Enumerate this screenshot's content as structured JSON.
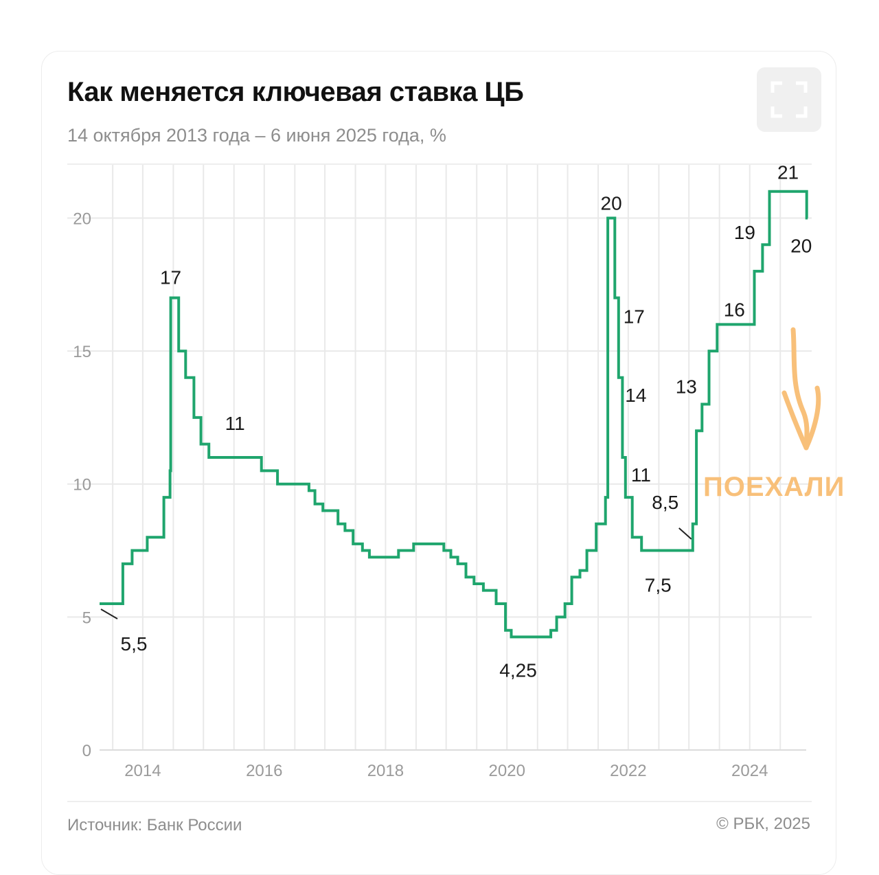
{
  "header": {
    "title": "Как меняется ключевая ставка ЦБ",
    "subtitle": "14 октября 2013 года – 6 июня 2025 года, %"
  },
  "footer": {
    "source": "Источник: Банк России",
    "copyright": "© РБК, 2025"
  },
  "top_fragment": "·",
  "colors": {
    "line": "#1fa56d",
    "grid": "#e9e9e9",
    "annotation": "#f8c07a"
  },
  "icons": {
    "expand": "expand-icon"
  },
  "chart_data": {
    "type": "line",
    "step": true,
    "title": "Как меняется ключевая ставка ЦБ",
    "subtitle": "14 октября 2013 года – 6 июня 2025 года, %",
    "xlim": [
      "2013-10-14",
      "2025-06-06"
    ],
    "ylim": [
      0,
      22
    ],
    "yticks": [
      0,
      5,
      10,
      15,
      20
    ],
    "xticks": [
      "2014",
      "2016",
      "2018",
      "2020",
      "2022",
      "2024"
    ],
    "grid": true,
    "series": [
      {
        "points": [
          [
            "2013-10-14",
            5.5
          ],
          [
            "2014-03-03",
            7.0
          ],
          [
            "2014-04-28",
            7.5
          ],
          [
            "2014-07-28",
            8.0
          ],
          [
            "2014-11-05",
            9.5
          ],
          [
            "2014-12-12",
            10.5
          ],
          [
            "2014-12-16",
            17.0
          ],
          [
            "2015-02-02",
            15.0
          ],
          [
            "2015-03-16",
            14.0
          ],
          [
            "2015-05-05",
            12.5
          ],
          [
            "2015-06-16",
            11.5
          ],
          [
            "2015-08-03",
            11.0
          ],
          [
            "2016-06-14",
            10.5
          ],
          [
            "2016-09-19",
            10.0
          ],
          [
            "2017-03-27",
            9.75
          ],
          [
            "2017-05-02",
            9.25
          ],
          [
            "2017-06-19",
            9.0
          ],
          [
            "2017-09-18",
            8.5
          ],
          [
            "2017-10-30",
            8.25
          ],
          [
            "2017-12-18",
            7.75
          ],
          [
            "2018-02-12",
            7.5
          ],
          [
            "2018-03-26",
            7.25
          ],
          [
            "2018-09-17",
            7.5
          ],
          [
            "2018-12-17",
            7.75
          ],
          [
            "2019-06-17",
            7.5
          ],
          [
            "2019-07-29",
            7.25
          ],
          [
            "2019-09-09",
            7.0
          ],
          [
            "2019-10-28",
            6.5
          ],
          [
            "2019-12-16",
            6.25
          ],
          [
            "2020-02-10",
            6.0
          ],
          [
            "2020-04-27",
            5.5
          ],
          [
            "2020-06-22",
            4.5
          ],
          [
            "2020-07-27",
            4.25
          ],
          [
            "2021-03-22",
            4.5
          ],
          [
            "2021-04-26",
            5.0
          ],
          [
            "2021-06-15",
            5.5
          ],
          [
            "2021-07-26",
            6.5
          ],
          [
            "2021-09-13",
            6.75
          ],
          [
            "2021-10-25",
            7.5
          ],
          [
            "2021-12-20",
            8.5
          ],
          [
            "2022-02-14",
            9.5
          ],
          [
            "2022-02-28",
            20.0
          ],
          [
            "2022-04-11",
            17.0
          ],
          [
            "2022-05-04",
            14.0
          ],
          [
            "2022-05-27",
            11.0
          ],
          [
            "2022-06-14",
            9.5
          ],
          [
            "2022-07-25",
            8.0
          ],
          [
            "2022-09-19",
            7.5
          ],
          [
            "2023-07-24",
            8.5
          ],
          [
            "2023-08-15",
            12.0
          ],
          [
            "2023-09-18",
            13.0
          ],
          [
            "2023-10-30",
            15.0
          ],
          [
            "2023-12-18",
            16.0
          ],
          [
            "2024-07-29",
            18.0
          ],
          [
            "2024-09-16",
            19.0
          ],
          [
            "2024-10-28",
            21.0
          ],
          [
            "2025-06-09",
            20.0
          ],
          [
            "2025-06-15",
            20.0
          ]
        ]
      }
    ],
    "data_labels": [
      {
        "text": "5,5",
        "x": "2013-10-14",
        "y": 5.5
      },
      {
        "text": "17",
        "x": "2014-12-16",
        "y": 17
      },
      {
        "text": "11",
        "x": "2015-08-03",
        "y": 11
      },
      {
        "text": "4,25",
        "x": "2020-07-27",
        "y": 4.25
      },
      {
        "text": "20",
        "x": "2022-02-28",
        "y": 20
      },
      {
        "text": "17",
        "x": "2022-04-11",
        "y": 17
      },
      {
        "text": "14",
        "x": "2022-05-04",
        "y": 14
      },
      {
        "text": "11",
        "x": "2022-05-27",
        "y": 11
      },
      {
        "text": "8,5",
        "x": "2023-07-24",
        "y": 8.5
      },
      {
        "text": "7,5",
        "x": "2022-09-19",
        "y": 7.5
      },
      {
        "text": "13",
        "x": "2023-09-18",
        "y": 13
      },
      {
        "text": "16",
        "x": "2023-12-18",
        "y": 16
      },
      {
        "text": "19",
        "x": "2024-09-16",
        "y": 19
      },
      {
        "text": "21",
        "x": "2024-10-28",
        "y": 21
      },
      {
        "text": "20",
        "x": "2025-06-09",
        "y": 20
      }
    ],
    "annotation": "ПОЕХАЛИ"
  }
}
